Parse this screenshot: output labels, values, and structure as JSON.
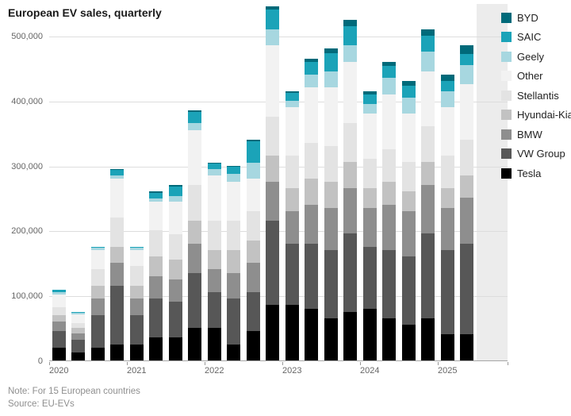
{
  "title": "European EV sales, quarterly",
  "note": "Note: For 15 European countries",
  "source": "Source: EU-EVs",
  "chart_data": {
    "type": "bar",
    "stacked": true,
    "title": "European EV sales, quarterly",
    "xlabel": "",
    "ylabel": "",
    "ylim": [
      0,
      550000
    ],
    "grid": true,
    "legend_position": "right",
    "x": [
      "2020 Q1",
      "2020 Q2",
      "2020 Q3",
      "2020 Q4",
      "2021 Q1",
      "2021 Q2",
      "2021 Q3",
      "2021 Q4",
      "2022 Q1",
      "2022 Q2",
      "2022 Q3",
      "2022 Q4",
      "2023 Q1",
      "2023 Q2",
      "2023 Q3",
      "2023 Q4",
      "2024 Q1",
      "2024 Q2",
      "2024 Q3",
      "2024 Q4",
      "2025 Q1",
      "2025 Q2"
    ],
    "year_labels": [
      "2020",
      "2021",
      "2022",
      "2023",
      "2024",
      "2025"
    ],
    "y_ticks": [
      0,
      100000,
      200000,
      300000,
      400000,
      500000
    ],
    "y_tick_labels": [
      "0",
      "100,000",
      "200,000",
      "300,000",
      "400,000",
      "500,000"
    ],
    "series": [
      {
        "name": "Tesla",
        "color": "#000000",
        "values": [
          20000,
          12000,
          20000,
          25000,
          25000,
          35000,
          35000,
          50000,
          50000,
          25000,
          45000,
          85000,
          85000,
          80000,
          65000,
          75000,
          80000,
          65000,
          55000,
          65000,
          40000,
          40000
        ]
      },
      {
        "name": "VW Group",
        "color": "#575757",
        "values": [
          25000,
          20000,
          50000,
          90000,
          45000,
          60000,
          55000,
          85000,
          55000,
          70000,
          60000,
          130000,
          95000,
          100000,
          105000,
          120000,
          95000,
          105000,
          105000,
          130000,
          130000,
          140000
        ]
      },
      {
        "name": "BMW",
        "color": "#8e8e8e",
        "values": [
          15000,
          10000,
          25000,
          35000,
          25000,
          35000,
          35000,
          45000,
          35000,
          40000,
          45000,
          60000,
          50000,
          60000,
          65000,
          70000,
          60000,
          70000,
          70000,
          75000,
          65000,
          70000
        ]
      },
      {
        "name": "Hyundai-Kia",
        "color": "#c2c2c2",
        "values": [
          10000,
          8000,
          20000,
          25000,
          20000,
          30000,
          30000,
          35000,
          30000,
          35000,
          35000,
          40000,
          35000,
          40000,
          40000,
          40000,
          30000,
          35000,
          30000,
          35000,
          30000,
          35000
        ]
      },
      {
        "name": "Stellantis",
        "color": "#e3e3e3",
        "values": [
          12000,
          8000,
          25000,
          45000,
          30000,
          40000,
          40000,
          55000,
          45000,
          45000,
          45000,
          60000,
          50000,
          55000,
          55000,
          60000,
          45000,
          50000,
          45000,
          55000,
          50000,
          55000
        ]
      },
      {
        "name": "Other",
        "color": "#f2f2f2",
        "values": [
          20000,
          13000,
          30000,
          60000,
          25000,
          45000,
          50000,
          85000,
          70000,
          60000,
          50000,
          110000,
          75000,
          85000,
          90000,
          95000,
          70000,
          85000,
          75000,
          85000,
          75000,
          85000
        ]
      },
      {
        "name": "Geely",
        "color": "#a7d7e0",
        "values": [
          3000,
          2000,
          3000,
          5000,
          3000,
          5000,
          8000,
          10000,
          10000,
          12000,
          25000,
          25000,
          10000,
          20000,
          25000,
          25000,
          15000,
          25000,
          25000,
          30000,
          25000,
          30000
        ]
      },
      {
        "name": "SAIC",
        "color": "#1ba3b8",
        "values": [
          4000,
          2000,
          2000,
          8000,
          2000,
          8000,
          15000,
          18000,
          8000,
          11000,
          32000,
          30000,
          12000,
          20000,
          28000,
          30000,
          15000,
          18000,
          18000,
          25000,
          15000,
          17000
        ]
      },
      {
        "name": "BYD",
        "color": "#006a7a",
        "values": [
          0,
          0,
          0,
          2000,
          0,
          2000,
          2000,
          2000,
          2000,
          2000,
          3000,
          5000,
          3000,
          5000,
          7000,
          10000,
          5000,
          7000,
          7000,
          10000,
          10000,
          13000
        ]
      }
    ],
    "legend_order": [
      "BYD",
      "SAIC",
      "Geely",
      "Other",
      "Stellantis",
      "Hyundai-Kia",
      "BMW",
      "VW Group",
      "Tesla"
    ]
  }
}
